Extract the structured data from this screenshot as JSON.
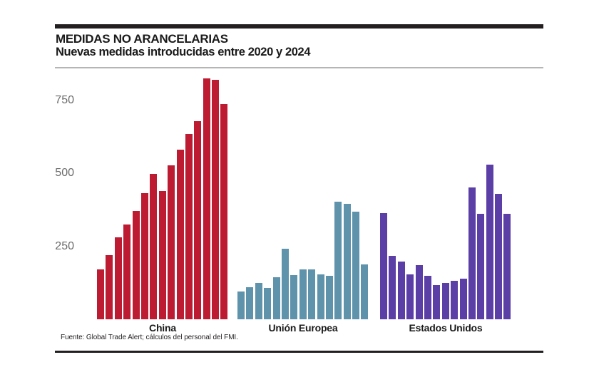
{
  "palette": {
    "background": "#ffffff",
    "rule_dark": "#231f20",
    "rule_light": "#b5b5b5",
    "tick_text": "#6b6b6b",
    "label_text": "#1a1a1a",
    "china_red": "#bc1b32",
    "eu_blue": "#5f93ac",
    "us_purple": "#5b3ea6"
  },
  "chart_data": {
    "type": "bar",
    "title": "MEDIDAS NO ARANCELARIAS",
    "subtitle": "Nuevas medidas introducidas entre 2020 y 2024",
    "source": "Fuente: Global Trade Alert; cálculos del personal del FMI.",
    "xlabel": "",
    "ylabel": "",
    "ylim": [
      0,
      850
    ],
    "y_ticks": [
      250,
      500,
      750
    ],
    "grid": false,
    "legend": "none",
    "bars_per_group": 15,
    "groups": [
      {
        "label": "China",
        "color": "#bc1b32",
        "values": [
          170,
          220,
          280,
          325,
          370,
          432,
          497,
          440,
          527,
          580,
          635,
          678,
          824,
          820,
          737
        ]
      },
      {
        "label": "Unión Europea",
        "color": "#5f93ac",
        "values": [
          95,
          110,
          124,
          107,
          143,
          241,
          151,
          170,
          170,
          154,
          150,
          403,
          396,
          369,
          189
        ]
      },
      {
        "label": "Estados Unidos",
        "color": "#5b3ea6",
        "values": [
          364,
          217,
          197,
          154,
          186,
          148,
          116,
          125,
          132,
          138,
          451,
          361,
          530,
          429,
          361
        ]
      }
    ]
  }
}
